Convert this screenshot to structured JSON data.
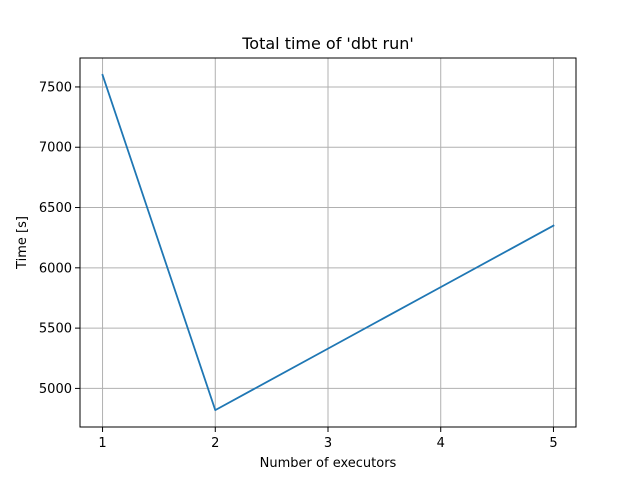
{
  "chart_data": {
    "type": "line",
    "title": "Total time of 'dbt run'",
    "xlabel": "Number of executors",
    "ylabel": "Time [s]",
    "x": [
      1,
      2,
      3,
      4,
      5
    ],
    "series": [
      {
        "values": [
          7600,
          4820,
          5330,
          5840,
          6350
        ],
        "color": "#1f77b4"
      }
    ],
    "xlim": [
      0.8,
      5.2
    ],
    "ylim": [
      4680,
      7740
    ],
    "xticks": [
      1,
      2,
      3,
      4,
      5
    ],
    "yticks": [
      5000,
      5500,
      6000,
      6500,
      7000,
      7500
    ],
    "grid": true,
    "legend": "none"
  }
}
